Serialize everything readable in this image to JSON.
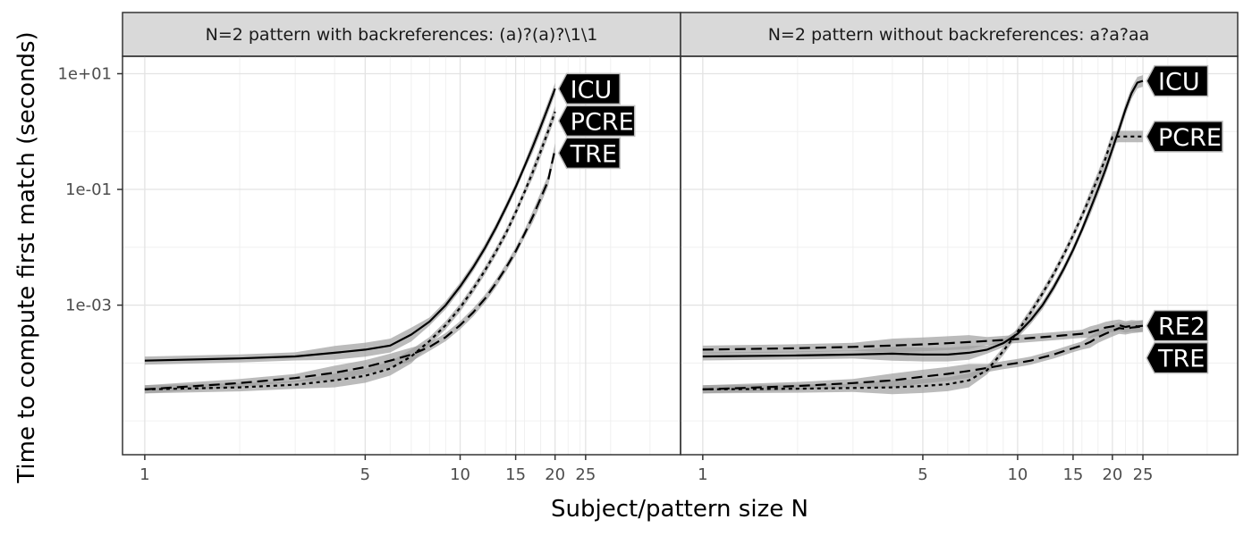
{
  "chart_data": {
    "type": "line",
    "xlabel": "Subject/pattern size N",
    "ylabel": "Time to compute first match (seconds)",
    "x_scale": "log",
    "y_scale": "log",
    "xlim": [
      0.85,
      50
    ],
    "ylim": [
      2.6e-06,
      20
    ],
    "x_ticks": [
      1,
      5,
      10,
      15,
      20,
      25
    ],
    "x_tick_labels": [
      "1",
      "5",
      "10",
      "15",
      "20",
      "25"
    ],
    "y_ticks": [
      0.001,
      0.1,
      10
    ],
    "y_tick_labels": [
      "1e-03",
      "1e-01",
      "1e+01"
    ],
    "grid": true,
    "legend": "direct labels at line ends",
    "colors": {
      "line": "#000000",
      "ribbon": "#9e9e9e",
      "strip_bg": "#d9d9d9",
      "label_bg": "#000000",
      "label_text": "#ffffff"
    },
    "panels": [
      {
        "strip": "N=2 pattern with backreferences: (a)?(a)?\\1\\1",
        "series": [
          {
            "name": "ICU",
            "line": "solid",
            "x": [
              1,
              2,
              3,
              4,
              5,
              6,
              7,
              8,
              9,
              10,
              11,
              12,
              13,
              14,
              15,
              16,
              17,
              18,
              19,
              20
            ],
            "y": [
              0.00011,
              0.00012,
              0.00013,
              0.00015,
              0.00017,
              0.0002,
              0.00031,
              0.00052,
              0.001,
              0.0021,
              0.0045,
              0.0098,
              0.022,
              0.05,
              0.11,
              0.25,
              0.55,
              1.2,
              2.6,
              5.5
            ]
          },
          {
            "name": "PCRE",
            "line": "dotted",
            "x": [
              1,
              2,
              3,
              4,
              5,
              6,
              7,
              8,
              9,
              10,
              11,
              12,
              13,
              14,
              15,
              16,
              17,
              18,
              19,
              20
            ],
            "y": [
              3.5e-05,
              3.8e-05,
              4.2e-05,
              5e-05,
              6e-05,
              8e-05,
              0.00013,
              0.00024,
              0.00045,
              0.0009,
              0.0019,
              0.004,
              0.0085,
              0.018,
              0.04,
              0.09,
              0.2,
              0.45,
              1.0,
              2.2
            ]
          },
          {
            "name": "TRE",
            "line": "dashed",
            "x": [
              1,
              2,
              3,
              4,
              5,
              6,
              7,
              8,
              9,
              10,
              11,
              12,
              13,
              14,
              15,
              16,
              17,
              18,
              19,
              20
            ],
            "y": [
              3.5e-05,
              4.5e-05,
              5.5e-05,
              6.8e-05,
              8.5e-05,
              0.00011,
              0.00014,
              0.00019,
              0.00028,
              0.00045,
              0.00075,
              0.0013,
              0.0024,
              0.0045,
              0.0085,
              0.017,
              0.034,
              0.07,
              0.14,
              0.5
            ]
          }
        ]
      },
      {
        "strip": "N=2 pattern without backreferences: a?a?aa",
        "series": [
          {
            "name": "ICU",
            "line": "solid",
            "x": [
              1,
              2,
              3,
              4,
              5,
              6,
              7,
              8,
              9,
              10,
              11,
              12,
              13,
              14,
              15,
              16,
              17,
              18,
              19,
              20,
              21,
              22,
              23,
              24,
              25
            ],
            "y": [
              0.00013,
              0.000135,
              0.00014,
              0.000145,
              0.00014,
              0.00014,
              0.00015,
              0.00017,
              0.00022,
              0.00032,
              0.00055,
              0.001,
              0.002,
              0.0042,
              0.009,
              0.02,
              0.045,
              0.1,
              0.22,
              0.5,
              1.1,
              2.4,
              4.6,
              7.0,
              7.5
            ]
          },
          {
            "name": "PCRE",
            "line": "dotted",
            "x": [
              1,
              2,
              3,
              4,
              5,
              6,
              7,
              8,
              9,
              10,
              11,
              12,
              13,
              14,
              15,
              16,
              17,
              18,
              19,
              20,
              21,
              22,
              23,
              24,
              25
            ],
            "y": [
              3.5e-05,
              3.6e-05,
              3.7e-05,
              3.8e-05,
              4e-05,
              4.3e-05,
              5e-05,
              7.5e-05,
              0.00016,
              0.00035,
              0.00075,
              0.0016,
              0.0034,
              0.0074,
              0.016,
              0.035,
              0.075,
              0.16,
              0.34,
              0.8,
              0.82,
              0.82,
              0.82,
              0.82,
              0.82
            ]
          },
          {
            "name": "RE2",
            "line": "dashed",
            "x": [
              1,
              2,
              3,
              4,
              5,
              6,
              7,
              8,
              9,
              10,
              11,
              12,
              13,
              14,
              15,
              16,
              17,
              18,
              19,
              20,
              21,
              22,
              23,
              24,
              25
            ],
            "y": [
              0.00017,
              0.00018,
              0.00019,
              0.0002,
              0.00021,
              0.00022,
              0.00023,
              0.00024,
              0.00025,
              0.00026,
              0.00027,
              0.00028,
              0.00029,
              0.0003,
              0.00031,
              0.00032,
              0.00034,
              0.00037,
              0.00041,
              0.00043,
              0.00045,
              0.00042,
              0.00044,
              0.00043,
              0.00044
            ]
          },
          {
            "name": "TRE",
            "line": "dashed",
            "x": [
              1,
              2,
              3,
              4,
              5,
              6,
              7,
              8,
              9,
              10,
              11,
              12,
              13,
              14,
              15,
              16,
              17,
              18,
              19,
              20,
              21,
              22,
              23,
              24,
              25
            ],
            "y": [
              3.5e-05,
              4e-05,
              4.5e-05,
              5e-05,
              5.8e-05,
              6.5e-05,
              7.3e-05,
              8.2e-05,
              9.2e-05,
              0.0001,
              0.00011,
              0.000125,
              0.00014,
              0.00016,
              0.00018,
              0.0002,
              0.00023,
              0.00028,
              0.00032,
              0.00036,
              0.0004,
              0.00039,
              0.00041,
              0.00042,
              0.00043
            ]
          }
        ]
      }
    ]
  }
}
